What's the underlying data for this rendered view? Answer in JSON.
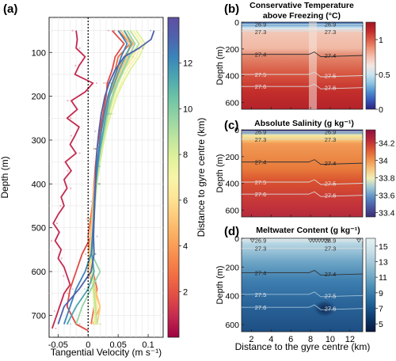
{
  "chart_data": [
    {
      "panel": "(a)",
      "type": "line",
      "xlabel": "Tangential Velocity (m s⁻¹)",
      "ylabel": "Depth (m)",
      "xlim": [
        -0.065,
        0.125
      ],
      "ylim": [
        750,
        20
      ],
      "y_reversed": true,
      "xticks": [
        -0.05,
        0,
        0.05,
        0.1
      ],
      "xtick_labels": [
        "-0.05",
        "0",
        "0.05",
        "0.1"
      ],
      "yticks": [
        100,
        200,
        300,
        400,
        500,
        600,
        700
      ],
      "zero_line": 0,
      "grid": true,
      "colorbar": {
        "label": "Distance to gyre centre (km)",
        "min": 0,
        "max": 14,
        "ticks": [
          2,
          4,
          6,
          8,
          10,
          12
        ],
        "colors": [
          "#9e0142",
          "#c4294f",
          "#e04b45",
          "#f26b43",
          "#f88a4c",
          "#fbab5e",
          "#fdc978",
          "#fee597",
          "#f7f5a8",
          "#dff19a",
          "#bde49f",
          "#94d4a4",
          "#6cc3a6",
          "#4ca6b0",
          "#3a85bb",
          "#4f62ad",
          "#5e4fa2"
        ]
      },
      "series": [
        {
          "distance_km": 0.5,
          "depth": [
            50,
            70,
            90,
            110,
            130,
            150,
            170,
            190,
            210,
            230,
            250,
            270,
            290,
            310,
            330,
            350,
            370,
            390,
            410,
            430,
            450,
            470,
            490,
            510,
            530,
            550,
            570,
            590,
            610,
            630,
            650,
            670,
            690,
            710,
            730
          ],
          "values": [
            -0.02,
            -0.018,
            -0.02,
            -0.005,
            -0.015,
            -0.022,
            0.008,
            -0.005,
            -0.028,
            -0.018,
            -0.035,
            -0.015,
            -0.022,
            -0.03,
            -0.02,
            -0.038,
            -0.028,
            -0.04,
            -0.035,
            -0.045,
            -0.04,
            -0.05,
            -0.058,
            -0.048,
            -0.055,
            -0.045,
            -0.05,
            -0.04,
            -0.035,
            -0.03,
            -0.04,
            -0.045,
            -0.05,
            -0.055,
            -0.06
          ]
        },
        {
          "distance_km": 2,
          "depth": [
            50,
            80,
            110,
            140,
            170,
            200,
            240,
            280,
            320,
            360,
            400,
            440,
            480,
            520,
            560,
            600,
            640,
            680,
            720,
            735
          ],
          "values": [
            0.04,
            0.06,
            0.045,
            0.04,
            0.032,
            0.03,
            0.025,
            0.02,
            0.018,
            0.015,
            0.012,
            0.01,
            0.008,
            0.005,
            -0.01,
            -0.02,
            -0.03,
            -0.035,
            -0.02,
            0.0
          ]
        },
        {
          "distance_km": 3,
          "depth": [
            50,
            80,
            110,
            140,
            170,
            200,
            240,
            280,
            320,
            360,
            400,
            440,
            480,
            520,
            560,
            600,
            640,
            680,
            720
          ],
          "values": [
            0.05,
            0.07,
            0.05,
            0.045,
            0.035,
            0.028,
            0.022,
            0.018,
            0.015,
            0.012,
            0.01,
            0.008,
            0.004,
            0.0,
            0.002,
            0.008,
            0.015,
            0.01,
            0.005
          ]
        },
        {
          "distance_km": 4,
          "depth": [
            50,
            80,
            110,
            140,
            170,
            200,
            240,
            280,
            320,
            360,
            400,
            440,
            480,
            520,
            560,
            600,
            640,
            680,
            720
          ],
          "values": [
            0.06,
            0.075,
            0.06,
            0.05,
            0.042,
            0.035,
            0.028,
            0.022,
            0.018,
            0.014,
            0.011,
            0.008,
            0.006,
            0.004,
            0.002,
            0.0,
            0.01,
            0.02,
            0.008
          ]
        },
        {
          "distance_km": 5,
          "depth": [
            50,
            80,
            110,
            140,
            170,
            200,
            240,
            280,
            320,
            360,
            400,
            440,
            480,
            520,
            560,
            600,
            640,
            680,
            720
          ],
          "values": [
            0.055,
            0.07,
            0.065,
            0.055,
            0.045,
            0.04,
            0.03,
            0.025,
            0.02,
            0.016,
            0.012,
            0.009,
            0.007,
            0.005,
            0.003,
            0.004,
            0.012,
            0.02,
            0.015
          ]
        },
        {
          "distance_km": 6,
          "depth": [
            50,
            80,
            110,
            140,
            170,
            200,
            240,
            280,
            320,
            360,
            400,
            440,
            480,
            520,
            560,
            600,
            640,
            680,
            720
          ],
          "values": [
            0.07,
            0.085,
            0.075,
            0.06,
            0.05,
            0.042,
            0.032,
            0.026,
            0.021,
            0.017,
            0.013,
            0.01,
            0.008,
            0.006,
            0.004,
            0.006,
            0.01,
            0.015,
            0.01
          ]
        },
        {
          "distance_km": 7,
          "depth": [
            50,
            80,
            110,
            140,
            170,
            200,
            240,
            280,
            320,
            360,
            400,
            440,
            480,
            520,
            560,
            600,
            640,
            680,
            720
          ],
          "values": [
            0.075,
            0.09,
            0.08,
            0.065,
            0.055,
            0.045,
            0.035,
            0.028,
            0.022,
            0.018,
            0.014,
            0.011,
            0.009,
            0.007,
            0.005,
            0.006,
            0.01,
            0.012,
            0.01
          ]
        },
        {
          "distance_km": 8,
          "depth": [
            50,
            80,
            110,
            140,
            170,
            200,
            240,
            280,
            320,
            360,
            400,
            440,
            480,
            520,
            560,
            600,
            640,
            680,
            720
          ],
          "values": [
            0.08,
            0.095,
            0.085,
            0.07,
            0.058,
            0.048,
            0.038,
            0.03,
            0.024,
            0.019,
            0.015,
            0.012,
            0.01,
            0.008,
            0.006,
            0.006,
            0.008,
            0.01,
            0.012
          ]
        },
        {
          "distance_km": 9,
          "depth": [
            50,
            80,
            110,
            140,
            170,
            200,
            240,
            280,
            320,
            360,
            400,
            440,
            480,
            520,
            560,
            600,
            640,
            680,
            720
          ],
          "values": [
            0.07,
            0.085,
            0.07,
            0.06,
            0.05,
            0.042,
            0.034,
            0.028,
            0.022,
            0.018,
            0.014,
            0.012,
            0.01,
            0.008,
            0.007,
            0.008,
            0.01,
            0.012,
            0.015
          ]
        },
        {
          "distance_km": 10,
          "depth": [
            50,
            80,
            110,
            140,
            170,
            200,
            240,
            280,
            320,
            360,
            400,
            440,
            480,
            520,
            560,
            600,
            640,
            680,
            720
          ],
          "values": [
            0.065,
            0.078,
            0.068,
            0.058,
            0.048,
            0.04,
            0.032,
            0.026,
            0.02,
            0.016,
            0.013,
            0.011,
            0.009,
            0.008,
            0.006,
            0.02,
            0.005,
            -0.01,
            -0.02
          ]
        },
        {
          "distance_km": 11,
          "depth": [
            50,
            80,
            110,
            140,
            170,
            200,
            240,
            280,
            320,
            360,
            400,
            440,
            480,
            520,
            560,
            600,
            640,
            680,
            720
          ],
          "values": [
            0.06,
            0.072,
            0.062,
            0.052,
            0.044,
            0.036,
            0.03,
            0.025,
            0.02,
            0.016,
            0.013,
            0.011,
            0.01,
            0.008,
            0.006,
            0.01,
            0.0,
            -0.02,
            -0.035
          ]
        },
        {
          "distance_km": 12,
          "depth": [
            50,
            80,
            110,
            140,
            170,
            200,
            240,
            280,
            320,
            360,
            400,
            440,
            480,
            520,
            560,
            600,
            640,
            680,
            720
          ],
          "values": [
            0.05,
            0.065,
            0.055,
            0.048,
            0.04,
            0.033,
            0.027,
            0.022,
            0.018,
            0.015,
            0.012,
            0.01,
            0.009,
            0.007,
            0.005,
            -0.005,
            -0.02,
            -0.03,
            -0.04
          ]
        },
        {
          "distance_km": 13,
          "depth": [
            50,
            70,
            90,
            110,
            140,
            170,
            200,
            240,
            280,
            320,
            360,
            400,
            440,
            480,
            520,
            560,
            600,
            640,
            680,
            720
          ],
          "values": [
            0.11,
            0.105,
            0.085,
            0.06,
            0.045,
            0.035,
            0.028,
            0.022,
            0.018,
            0.015,
            0.013,
            0.012,
            0.011,
            0.01,
            0.009,
            0.01,
            0.005,
            -0.015,
            -0.04,
            -0.05
          ]
        }
      ]
    },
    {
      "panel": "(b)",
      "type": "heatmap",
      "title": "Conservative Temperature above Freezing (°C)",
      "title_lines": [
        "Conservative Temperature",
        "above Freezing (°C)"
      ],
      "ylabel": "Depth (m)",
      "ylim": [
        650,
        0
      ],
      "xlim": [
        1,
        13.3
      ],
      "yticks": [
        0,
        200,
        400,
        600
      ],
      "colorbar": {
        "min": 0,
        "max": 1.25,
        "ticks": [
          0,
          0.5,
          1
        ],
        "tick_labels": [
          "0",
          "0.5",
          "1"
        ],
        "colors": [
          "#2c2180",
          "#3656b8",
          "#4f8ed0",
          "#8ec4e4",
          "#c9e4ef",
          "#f3e6e1",
          "#f6c2b0",
          "#ee9476",
          "#dc5b46",
          "#c32a2b",
          "#a01622"
        ]
      },
      "contours": [
        {
          "label": "26.9",
          "depth": 15
        },
        {
          "label": "27.3",
          "depth": 70
        },
        {
          "label": "27.4",
          "depth": 240
        },
        {
          "label": "27.5",
          "depth": 390
        },
        {
          "label": "27.6",
          "depth": 480
        }
      ]
    },
    {
      "panel": "(c)",
      "type": "heatmap",
      "title": "Absolute Salinity (g kg⁻¹)",
      "ylabel": "Depth (m)",
      "ylim": [
        650,
        0
      ],
      "xlim": [
        1,
        13.3
      ],
      "yticks": [
        0,
        200,
        400,
        600
      ],
      "colorbar": {
        "min": 33.35,
        "max": 34.35,
        "ticks": [
          33.4,
          33.6,
          33.8,
          34,
          34.2
        ],
        "tick_labels": [
          "33.4",
          "33.6",
          "33.8",
          "34",
          "34.2"
        ],
        "colors": [
          "#3b2d72",
          "#4a57a0",
          "#5a8bc4",
          "#9cc6d6",
          "#f0efb6",
          "#f6c27a",
          "#ef8c4a",
          "#dc5633",
          "#b8263a",
          "#8f1040"
        ]
      },
      "contours": [
        {
          "label": "26.9",
          "depth": 15
        },
        {
          "label": "27.3",
          "depth": 70
        },
        {
          "label": "27.4",
          "depth": 240
        },
        {
          "label": "27.5",
          "depth": 390
        },
        {
          "label": "27.6",
          "depth": 480
        }
      ]
    },
    {
      "panel": "(d)",
      "type": "heatmap",
      "title": "Meltwater Content (g kg⁻¹)",
      "xlabel": "Distance to the gyre centre (km)",
      "ylabel": "Depth (m)",
      "ylim": [
        650,
        0
      ],
      "xlim": [
        1,
        13.3
      ],
      "xticks": [
        2,
        4,
        6,
        8,
        10,
        12
      ],
      "yticks": [
        0,
        200,
        400,
        600
      ],
      "colorbar": {
        "min": 4,
        "max": 16,
        "ticks": [
          5,
          7,
          9,
          11,
          13,
          15
        ],
        "tick_labels": [
          "5",
          "7",
          "9",
          "11",
          "13",
          "15"
        ],
        "colors": [
          "#08193d",
          "#0c3566",
          "#17548b",
          "#2f74a6",
          "#5293bb",
          "#7bb0cb",
          "#a6cbdc",
          "#cde2ea",
          "#e8f2f4"
        ]
      },
      "contours": [
        {
          "label": "26.9",
          "depth": 15
        },
        {
          "label": "27.3",
          "depth": 70
        },
        {
          "label": "27.4",
          "depth": 240
        },
        {
          "label": "27.5",
          "depth": 390
        },
        {
          "label": "27.6",
          "depth": 480
        }
      ]
    }
  ]
}
